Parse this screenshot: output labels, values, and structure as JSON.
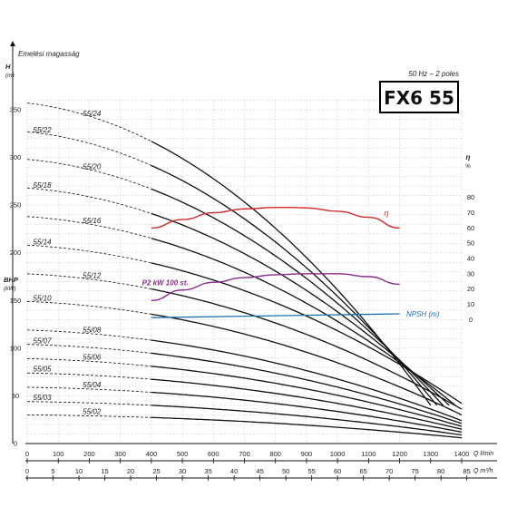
{
  "header": {
    "y_axis_title": "Emelési magasság",
    "frequency": "50 Hz – 2 poles",
    "model": "FX6 55"
  },
  "chart_data": {
    "type": "line",
    "x_flow_lmin": {
      "label": "Q l/min",
      "ticks": [
        0,
        100,
        200,
        300,
        400,
        500,
        600,
        700,
        800,
        900,
        1000,
        1100,
        1200,
        1300,
        1400
      ]
    },
    "x_flow_m3h": {
      "label": "Q m³/h",
      "ticks": [
        0,
        5,
        10,
        15,
        20,
        25,
        30,
        35,
        40,
        45,
        50,
        55,
        60,
        65,
        70,
        75,
        80,
        85
      ]
    },
    "y_head": {
      "label": "H",
      "unit": "(m)",
      "ticks": [
        0,
        50,
        100,
        150,
        200,
        250,
        300,
        350
      ],
      "ylim": [
        0,
        360
      ]
    },
    "y_eff": {
      "label": "η",
      "unit": "%",
      "ticks": [
        0,
        10,
        20,
        30,
        40,
        50,
        60,
        70,
        80
      ]
    },
    "bhp_label": {
      "label": "BHP",
      "unit": "(kW)"
    },
    "pump_curves": [
      {
        "name": "55/02",
        "shutoff": 30,
        "q_end": 1400,
        "h_end": 6
      },
      {
        "name": "55/03",
        "shutoff": 44,
        "q_end": 1400,
        "h_end": 9
      },
      {
        "name": "55/04",
        "shutoff": 59,
        "q_end": 1400,
        "h_end": 12
      },
      {
        "name": "55/05",
        "shutoff": 74,
        "q_end": 1400,
        "h_end": 15
      },
      {
        "name": "55/06",
        "shutoff": 89,
        "q_end": 1400,
        "h_end": 18
      },
      {
        "name": "55/07",
        "shutoff": 104,
        "q_end": 1400,
        "h_end": 21
      },
      {
        "name": "55/08",
        "shutoff": 119,
        "q_end": 1400,
        "h_end": 24
      },
      {
        "name": "55/10",
        "shutoff": 149,
        "q_end": 1400,
        "h_end": 30
      },
      {
        "name": "55/12",
        "shutoff": 178,
        "q_end": 1400,
        "h_end": 36
      },
      {
        "name": "55/14",
        "shutoff": 208,
        "q_end": 1400,
        "h_end": 42
      },
      {
        "name": "55/16",
        "shutoff": 238,
        "q_end": 1380,
        "h_end": 40
      },
      {
        "name": "55/18",
        "shutoff": 268,
        "q_end": 1360,
        "h_end": 40
      },
      {
        "name": "55/20",
        "shutoff": 298,
        "q_end": 1340,
        "h_end": 40
      },
      {
        "name": "55/22",
        "shutoff": 327,
        "q_end": 1320,
        "h_end": 40
      },
      {
        "name": "55/24",
        "shutoff": 357,
        "q_end": 1300,
        "h_end": 40
      }
    ],
    "efficiency_curve": {
      "name": "η",
      "color": "#d42a2a",
      "q": [
        400,
        500,
        600,
        700,
        800,
        850,
        900,
        1000,
        1100,
        1200
      ],
      "eff": [
        60,
        65.5,
        70,
        72.5,
        73.5,
        73.5,
        73.2,
        71,
        67,
        60
      ]
    },
    "power_curve": {
      "name": "P2 kW 100 st.",
      "color": "#8b2c8b",
      "q": [
        400,
        500,
        600,
        700,
        800,
        900,
        1000,
        1100,
        1200
      ],
      "h": [
        150,
        161,
        169,
        174,
        177,
        178,
        178,
        175,
        167
      ]
    },
    "npsh_curve": {
      "name": "NPSH (m)",
      "color": "#1a6fb0",
      "q": [
        400,
        1200
      ],
      "h": [
        132,
        136
      ]
    }
  }
}
